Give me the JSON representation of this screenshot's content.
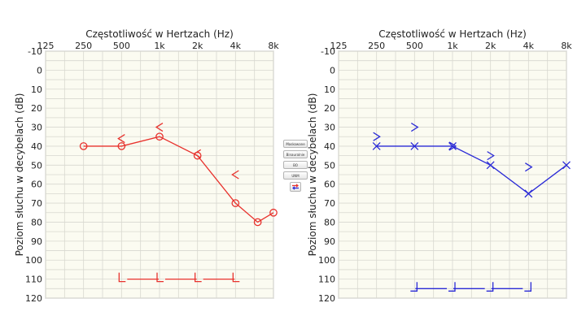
{
  "colors": {
    "right_ear": "#e8322d",
    "left_ear": "#2a2ad6"
  },
  "toolbar": {
    "buttons": [
      "Maskowane",
      "Binauralnie",
      "BO",
      "UNM"
    ],
    "swap_icon": "swap-arrows-icon"
  },
  "chart_data": [
    {
      "type": "line",
      "ear": "right",
      "title": "Częstotliwość w Hertzach (Hz)",
      "ylabel": "Poziom słuchu w decybelach (dB)",
      "x_scale": "log",
      "xlim": [
        125,
        8000
      ],
      "ylim": [
        -10,
        120
      ],
      "y_inverted": true,
      "x_tick_values": [
        125,
        250,
        500,
        1000,
        2000,
        4000,
        8000
      ],
      "x_tick_labels": [
        "125",
        "250",
        "500",
        "1k",
        "2k",
        "4k",
        "8k"
      ],
      "y_ticks": [
        -10,
        0,
        10,
        20,
        30,
        40,
        50,
        60,
        70,
        80,
        90,
        100,
        110,
        120
      ],
      "series": [
        {
          "marker": "circle",
          "x": [
            250,
            500,
            1000,
            2000,
            4000,
            6000,
            8000
          ],
          "y": [
            40,
            40,
            35,
            45,
            70,
            80,
            75
          ]
        },
        {
          "marker": "bracket-left",
          "x": [
            500,
            1000,
            2000,
            4000
          ],
          "y": [
            110,
            110,
            110,
            110
          ]
        }
      ],
      "symbols": [
        {
          "marker": "chevron-left",
          "x": [
            500,
            1000,
            2000,
            4000
          ],
          "y": [
            36,
            30,
            44,
            55
          ]
        }
      ]
    },
    {
      "type": "line",
      "ear": "left",
      "title": "Częstotliwość w Hertzach (Hz)",
      "ylabel": "Poziom słuchu w decybelach (dB)",
      "x_scale": "log",
      "xlim": [
        125,
        8000
      ],
      "ylim": [
        -10,
        120
      ],
      "y_inverted": true,
      "x_tick_values": [
        125,
        250,
        500,
        1000,
        2000,
        4000,
        8000
      ],
      "x_tick_labels": [
        "125",
        "250",
        "500",
        "1k",
        "2k",
        "4k",
        "8k"
      ],
      "y_ticks": [
        -10,
        0,
        10,
        20,
        30,
        40,
        50,
        60,
        70,
        80,
        90,
        100,
        110,
        120
      ],
      "series": [
        {
          "marker": "cross",
          "x": [
            250,
            500,
            1000,
            2000,
            4000,
            8000
          ],
          "y": [
            40,
            40,
            40,
            50,
            65,
            50
          ]
        },
        {
          "marker": "bracket-right",
          "x": [
            500,
            1000,
            2000,
            4000
          ],
          "y": [
            115,
            115,
            115,
            115
          ]
        }
      ],
      "symbols": [
        {
          "marker": "chevron-right",
          "x": [
            250,
            500,
            1000,
            2000,
            4000
          ],
          "y": [
            35,
            30,
            40,
            45,
            51
          ]
        }
      ]
    }
  ]
}
